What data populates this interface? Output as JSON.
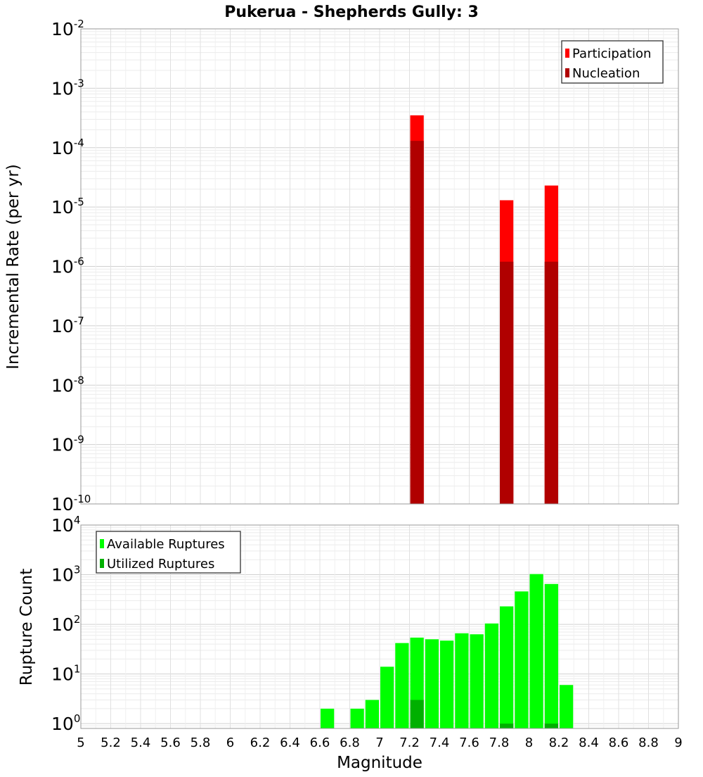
{
  "chart_data": [
    {
      "type": "bar",
      "title": "Pukerua - Shepherds Gully: 3",
      "xlabel": "",
      "ylabel": "Incremental Rate (per yr)",
      "yscale": "log",
      "ylim": [
        1e-10,
        0.01
      ],
      "xlim": [
        5,
        9
      ],
      "bin_width": 0.1,
      "y_tick_labels": [
        {
          "base": "10",
          "exp": "-2"
        },
        {
          "base": "10",
          "exp": "-3"
        },
        {
          "base": "10",
          "exp": "-4"
        },
        {
          "base": "10",
          "exp": "-5"
        },
        {
          "base": "10",
          "exp": "-6"
        },
        {
          "base": "10",
          "exp": "-7"
        },
        {
          "base": "10",
          "exp": "-8"
        },
        {
          "base": "10",
          "exp": "-9"
        },
        {
          "base": "10",
          "exp": "-10"
        }
      ],
      "legend": {
        "position": "top-right",
        "entries": [
          "Participation",
          "Nucleation"
        ]
      },
      "series": [
        {
          "name": "Participation",
          "color": "#ff0000",
          "x": [
            7.25,
            7.85,
            8.15
          ],
          "values": [
            0.00035,
            1.3e-05,
            2.3e-05
          ]
        },
        {
          "name": "Nucleation",
          "color": "#b00000",
          "x": [
            7.25,
            7.85,
            8.15
          ],
          "values": [
            0.00013,
            1.2e-06,
            1.2e-06
          ]
        }
      ]
    },
    {
      "type": "bar",
      "title": "",
      "xlabel": "Magnitude",
      "ylabel": "Rupture Count",
      "yscale": "log",
      "ylim": [
        0.8,
        10000
      ],
      "xlim": [
        5,
        9
      ],
      "bin_width": 0.1,
      "x_tick_labels": [
        "5",
        "5.2",
        "5.4",
        "5.6",
        "5.8",
        "6",
        "6.2",
        "6.4",
        "6.6",
        "6.8",
        "7",
        "7.2",
        "7.4",
        "7.6",
        "7.8",
        "8",
        "8.2",
        "8.4",
        "8.6",
        "8.8",
        "9"
      ],
      "y_tick_labels": [
        {
          "base": "10",
          "exp": "4"
        },
        {
          "base": "10",
          "exp": "3"
        },
        {
          "base": "10",
          "exp": "2"
        },
        {
          "base": "10",
          "exp": "1"
        },
        {
          "base": "10",
          "exp": "0"
        }
      ],
      "legend": {
        "position": "top-left",
        "entries": [
          "Available Ruptures",
          "Utilized Ruptures"
        ]
      },
      "series": [
        {
          "name": "Available Ruptures",
          "color": "#00ff00",
          "x": [
            6.65,
            6.85,
            6.95,
            7.05,
            7.15,
            7.25,
            7.35,
            7.45,
            7.55,
            7.65,
            7.75,
            7.85,
            7.95,
            8.05,
            8.15,
            8.25
          ],
          "values": [
            2,
            2,
            3,
            14,
            42,
            54,
            50,
            47,
            66,
            63,
            104,
            230,
            460,
            1030,
            650,
            6
          ]
        },
        {
          "name": "Utilized Ruptures",
          "color": "#00b000",
          "x": [
            7.25,
            7.85,
            8.15
          ],
          "values": [
            3,
            1,
            1
          ]
        }
      ]
    }
  ]
}
